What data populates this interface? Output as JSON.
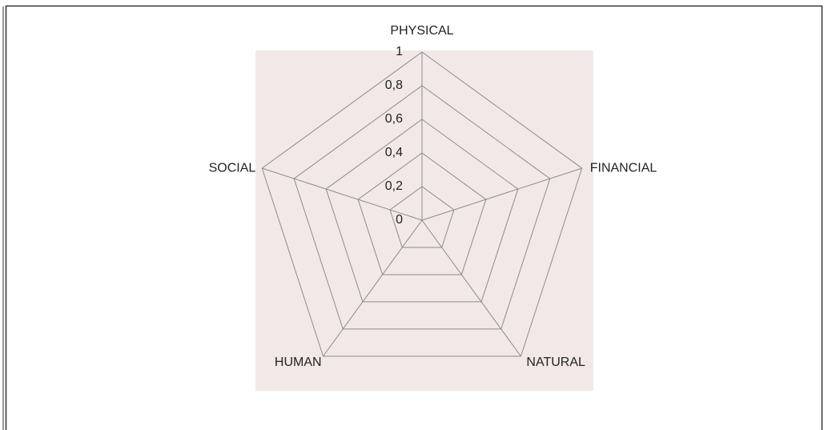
{
  "chart_data": {
    "type": "radar",
    "categories": [
      "PHYSICAL",
      "FINANCIAL",
      "NATURAL",
      "HUMAN",
      "SOCIAL"
    ],
    "rlim": [
      0,
      1
    ],
    "rticks": [
      0,
      {
        "value": 0.2,
        "label": "0,2"
      },
      {
        "value": 0.4,
        "label": "0,4"
      },
      {
        "value": 0.6,
        "label": "0,6"
      },
      {
        "value": 0.8,
        "label": "0,8"
      },
      1
    ],
    "grid": true,
    "grid_color": "#8c8c8c",
    "plot_background": "#f2e8e8"
  }
}
